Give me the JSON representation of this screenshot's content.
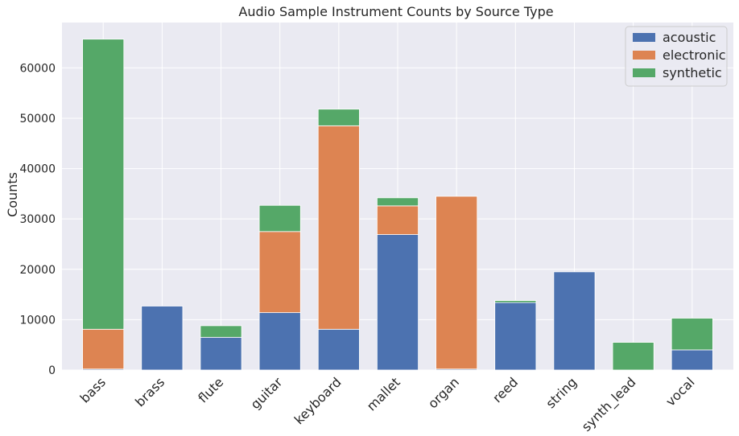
{
  "chart_data": {
    "type": "bar",
    "stacked": true,
    "title": "Audio Sample Instrument Counts by Source Type",
    "xlabel": "",
    "ylabel": "Counts",
    "ylim": [
      0,
      69000
    ],
    "yticks": [
      0,
      10000,
      20000,
      30000,
      40000,
      50000,
      60000
    ],
    "grid": true,
    "legend_position": "top-right",
    "categories": [
      "bass",
      "brass",
      "flute",
      "guitar",
      "keyboard",
      "mallet",
      "organ",
      "reed",
      "string",
      "synth_lead",
      "vocal"
    ],
    "series": [
      {
        "name": "acoustic",
        "color": "#4c72b0",
        "values": [
          200,
          12700,
          6500,
          11400,
          8100,
          26900,
          200,
          13400,
          19500,
          0,
          4000
        ]
      },
      {
        "name": "electronic",
        "color": "#dd8452",
        "values": [
          7900,
          0,
          0,
          16100,
          40400,
          5700,
          34300,
          0,
          0,
          0,
          0
        ]
      },
      {
        "name": "synthetic",
        "color": "#55a868",
        "values": [
          57600,
          0,
          2300,
          5200,
          3300,
          1600,
          0,
          400,
          0,
          5500,
          6300
        ]
      }
    ]
  },
  "colors": {
    "plot_background": "#eaeaf2",
    "grid": "#ffffff"
  }
}
